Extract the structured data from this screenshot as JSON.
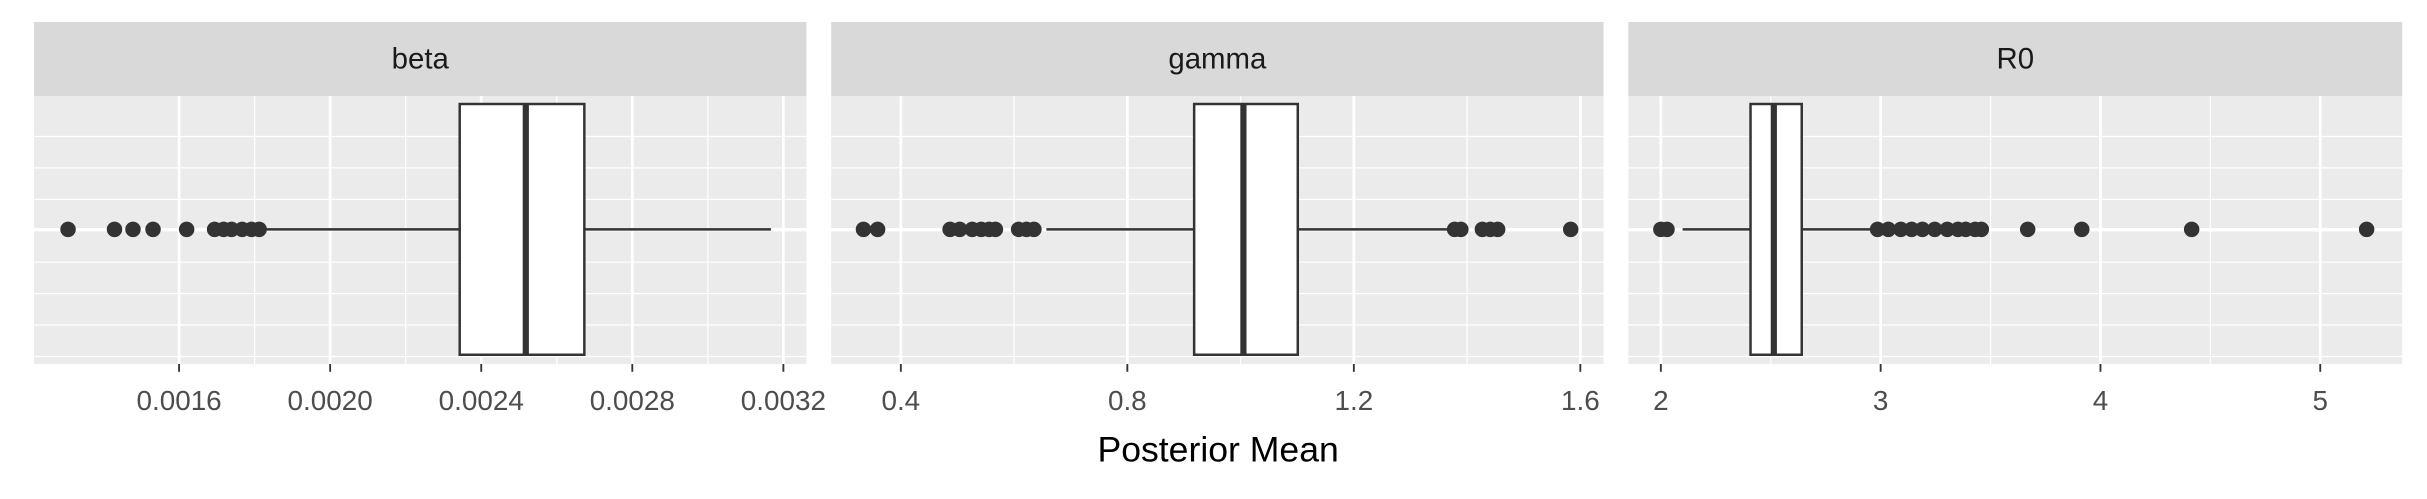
{
  "chart_data": {
    "type": "boxplot",
    "xlabel": "Posterior Mean",
    "grid": true,
    "panel_color": "#ebebeb",
    "strip_color": "#d9d9d9",
    "box_fill": "#ffffff",
    "line_color": "#333333",
    "facets": [
      {
        "title": "beta",
        "xlim": [
          0.001216,
          0.003261
        ],
        "xticks": [
          0.0016,
          {
            "value": 0.002,
            "label": "0.0020"
          },
          0.0024,
          0.0028,
          0.0032
        ],
        "whisker_low": 0.001829,
        "q1": 0.002343,
        "median": 0.002518,
        "q3": 0.002673,
        "whisker_high": 0.003167,
        "outliers": [
          0.001306,
          0.001429,
          0.001478,
          0.001531,
          0.00162,
          0.001694,
          0.001718,
          0.001739,
          0.001767,
          0.001792,
          0.001812
        ]
      },
      {
        "title": "gamma",
        "xlim": [
          0.277,
          1.641
        ],
        "xticks": [
          0.4,
          0.8,
          1.2,
          1.6
        ],
        "whisker_low": 0.657,
        "q1": 0.918,
        "median": 1.005,
        "q3": 1.101,
        "whisker_high": 1.37,
        "outliers": [
          0.334,
          0.359,
          0.487,
          0.504,
          0.526,
          0.542,
          0.556,
          0.567,
          0.608,
          0.622,
          0.635,
          1.378,
          1.389,
          1.427,
          1.441,
          1.454,
          1.583
        ]
      },
      {
        "title": "R0",
        "xlim": [
          1.852,
          5.373
        ],
        "xticks": [
          2,
          3,
          4,
          5
        ],
        "whisker_low": 2.099,
        "q1": 2.408,
        "median": 2.514,
        "q3": 2.641,
        "whisker_high": 2.965,
        "outliers": [
          2.0,
          2.028,
          2.986,
          3.035,
          3.092,
          3.141,
          3.19,
          3.246,
          3.303,
          3.352,
          3.387,
          3.43,
          3.458,
          3.669,
          3.915,
          4.415,
          5.211
        ]
      }
    ]
  }
}
